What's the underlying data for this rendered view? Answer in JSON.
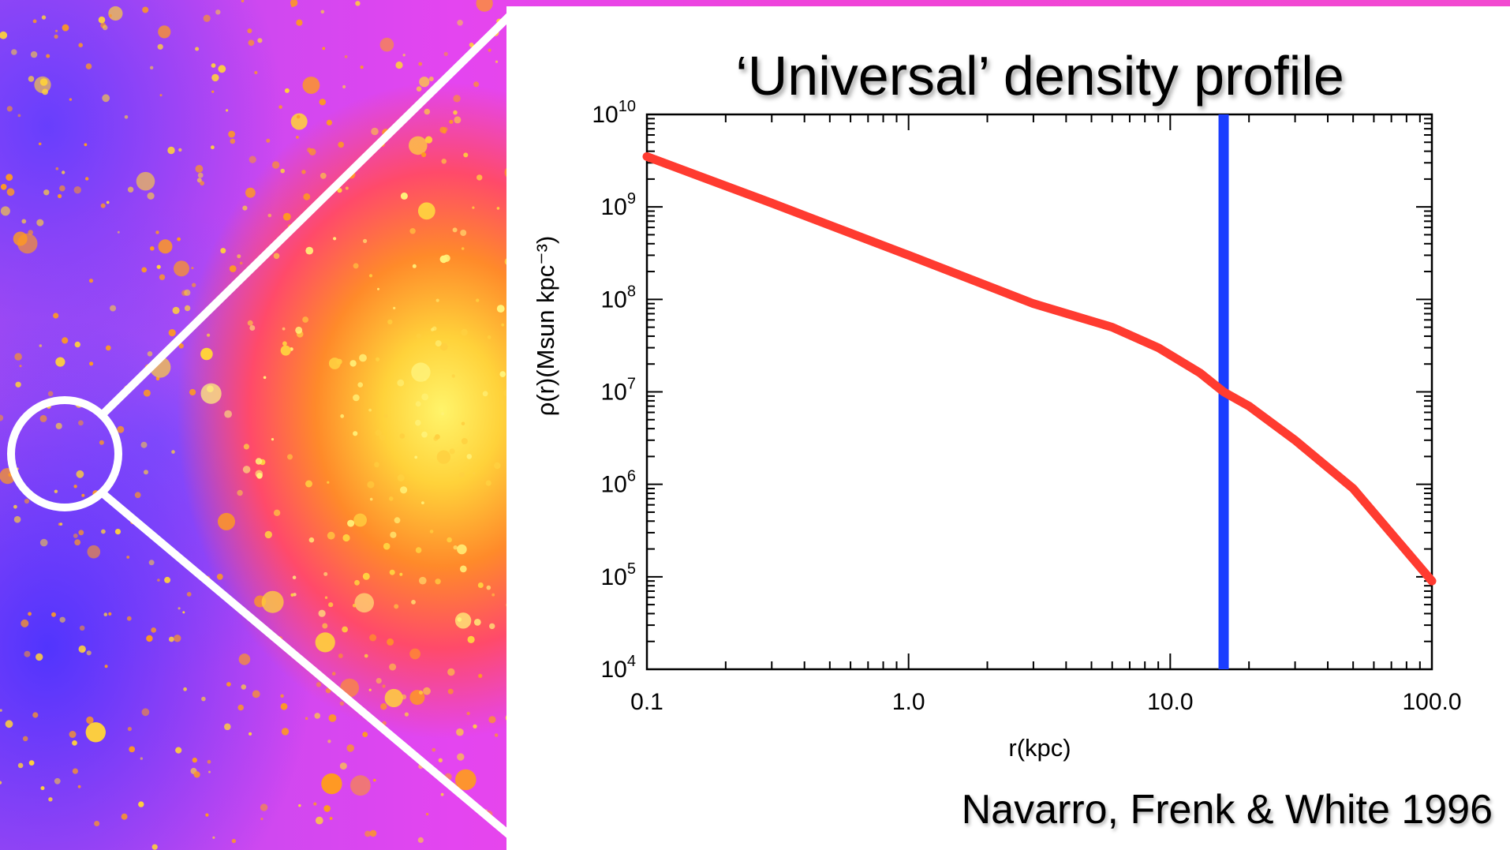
{
  "slide": {
    "title": "‘Universal’ density profile",
    "citation": "Navarro, Frenk & White 1996"
  },
  "colors": {
    "curve": "#ff3b30",
    "marker_line": "#1a3dff",
    "axis": "#000000"
  },
  "chart_data": {
    "type": "line",
    "title": "‘Universal’ density profile",
    "xlabel": "r(kpc)",
    "ylabel": "ρ(r)(Msun kpc⁻³)",
    "x_scale": "log",
    "y_scale": "log",
    "xlim": [
      0.1,
      100
    ],
    "ylim": [
      10000,
      10000000000
    ],
    "x_ticks": [
      "0.1",
      "1.0",
      "10.0",
      "100.0"
    ],
    "y_ticks": [
      {
        "base": "10",
        "exp": "4"
      },
      {
        "base": "10",
        "exp": "5"
      },
      {
        "base": "10",
        "exp": "6"
      },
      {
        "base": "10",
        "exp": "7"
      },
      {
        "base": "10",
        "exp": "8"
      },
      {
        "base": "10",
        "exp": "9"
      },
      {
        "base": "10",
        "exp": "10"
      }
    ],
    "series": [
      {
        "x": [
          0.1,
          0.3,
          1,
          3,
          6,
          9,
          13,
          16,
          20,
          30,
          50,
          100
        ],
        "y": [
          3500000000,
          1100000000,
          300000000,
          90000000,
          50000000,
          30000000,
          16000000,
          10000000,
          7000000,
          3000000,
          900000,
          90000
        ]
      }
    ],
    "vertical_line": {
      "x": 16
    },
    "grid": false,
    "legend": "none"
  }
}
